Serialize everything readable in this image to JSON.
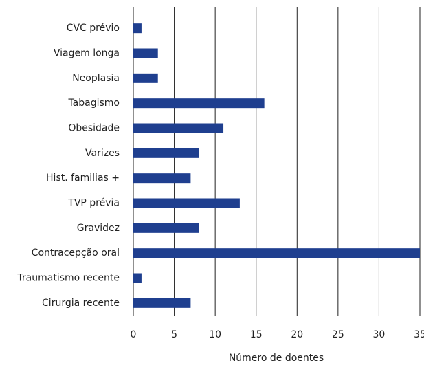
{
  "chart_data": {
    "type": "barh",
    "xlabel": "Número de doentes",
    "categories": [
      "CVC prévio",
      "Viagem longa",
      "Neoplasia",
      "Tabagismo",
      "Obesidade",
      "Varizes",
      "Hist. familias +",
      "TVP prévia",
      "Gravidez",
      "Contracepção oral",
      "Traumatismo recente",
      "Cirurgia recente"
    ],
    "values": [
      1,
      3,
      3,
      16,
      11,
      8,
      7,
      13,
      8,
      35,
      1,
      7
    ],
    "color": "#1f3f8f",
    "xlim": [
      0,
      35
    ],
    "xticks": [
      0,
      5,
      10,
      15,
      20,
      25,
      30,
      35
    ],
    "grid": true
  }
}
